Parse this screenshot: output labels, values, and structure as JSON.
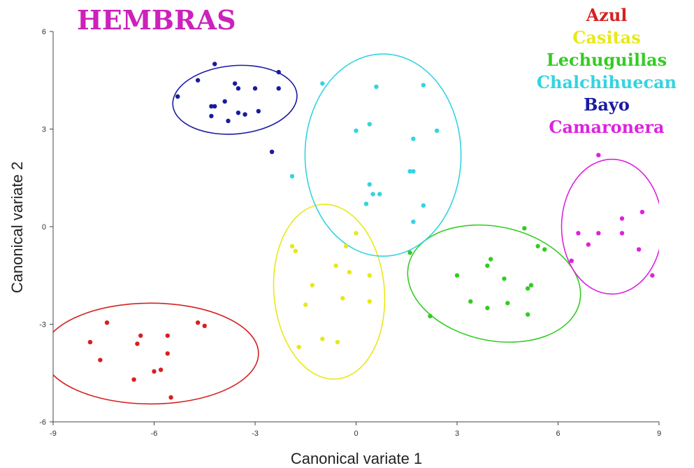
{
  "chart_data": {
    "type": "scatter",
    "title": "HEMBRAS",
    "xlabel": "Canonical variate 1",
    "ylabel": "Canonical variate 2",
    "xlim": [
      -9,
      9
    ],
    "ylim": [
      -6,
      6
    ],
    "xticks": [
      -9,
      -6,
      -3,
      0,
      3,
      6,
      9
    ],
    "yticks": [
      -6,
      -3,
      0,
      3,
      6
    ],
    "grid": false,
    "legend_position": "top-right",
    "colors": {
      "title": "#cc22bb"
    },
    "series": [
      {
        "name": "Azul",
        "color": "#d62020",
        "ellipse": {
          "cx": -6.1,
          "cy": -3.9,
          "rx": 3.2,
          "ry": 1.55,
          "angle": 0
        },
        "points": [
          [
            -7.4,
            -2.95
          ],
          [
            -7.9,
            -3.55
          ],
          [
            -7.6,
            -4.1
          ],
          [
            -6.5,
            -3.6
          ],
          [
            -6.4,
            -3.35
          ],
          [
            -6.0,
            -4.45
          ],
          [
            -6.6,
            -4.7
          ],
          [
            -5.8,
            -4.4
          ],
          [
            -5.6,
            -3.35
          ],
          [
            -5.6,
            -3.9
          ],
          [
            -4.7,
            -2.95
          ],
          [
            -4.5,
            -3.05
          ],
          [
            -5.5,
            -5.25
          ]
        ]
      },
      {
        "name": "Casitas",
        "color": "#e8e81a",
        "ellipse": {
          "cx": -0.8,
          "cy": -2.0,
          "rx": 2.6,
          "ry": 1.7,
          "angle": 95
        },
        "points": [
          [
            -1.9,
            -0.6
          ],
          [
            -1.8,
            -0.75
          ],
          [
            0.0,
            -0.2
          ],
          [
            -0.3,
            -0.6
          ],
          [
            -0.6,
            -1.2
          ],
          [
            -0.2,
            -1.4
          ],
          [
            0.4,
            -1.5
          ],
          [
            -1.3,
            -1.8
          ],
          [
            -1.5,
            -2.4
          ],
          [
            -0.4,
            -2.2
          ],
          [
            0.4,
            -2.3
          ],
          [
            -1.7,
            -3.7
          ],
          [
            -1.0,
            -3.45
          ],
          [
            -0.55,
            -3.55
          ]
        ]
      },
      {
        "name": "Lechuguillas",
        "color": "#33cc22",
        "ellipse": {
          "cx": 4.1,
          "cy": -1.75,
          "rx": 2.6,
          "ry": 1.75,
          "angle": -12
        },
        "points": [
          [
            1.6,
            -0.8
          ],
          [
            5.0,
            -0.05
          ],
          [
            5.4,
            -0.6
          ],
          [
            5.6,
            -0.7
          ],
          [
            4.0,
            -1.0
          ],
          [
            3.9,
            -1.2
          ],
          [
            3.0,
            -1.5
          ],
          [
            4.4,
            -1.6
          ],
          [
            5.1,
            -1.9
          ],
          [
            5.2,
            -1.8
          ],
          [
            3.4,
            -2.3
          ],
          [
            3.9,
            -2.5
          ],
          [
            4.5,
            -2.35
          ],
          [
            2.2,
            -2.75
          ],
          [
            5.1,
            -2.7
          ]
        ]
      },
      {
        "name": "Chalchihuecan",
        "color": "#33d4e0",
        "ellipse": {
          "cx": 0.8,
          "cy": 2.2,
          "rx": 3.0,
          "ry": 2.4,
          "angle": 90
        },
        "points": [
          [
            -1.0,
            4.4
          ],
          [
            0.6,
            4.3
          ],
          [
            2.0,
            4.35
          ],
          [
            0.4,
            3.15
          ],
          [
            0.0,
            2.95
          ],
          [
            2.4,
            2.95
          ],
          [
            1.7,
            2.7
          ],
          [
            1.6,
            1.7
          ],
          [
            1.7,
            1.7
          ],
          [
            -1.9,
            1.55
          ],
          [
            0.4,
            1.3
          ],
          [
            0.5,
            1.0
          ],
          [
            0.7,
            1.0
          ],
          [
            0.3,
            0.7
          ],
          [
            2.0,
            0.65
          ],
          [
            1.7,
            0.15
          ]
        ]
      },
      {
        "name": "Bayo",
        "color": "#1a1aa0",
        "ellipse": {
          "cx": -3.6,
          "cy": 3.9,
          "rx": 1.85,
          "ry": 1.05,
          "angle": 5
        },
        "points": [
          [
            -4.2,
            5.0
          ],
          [
            -4.7,
            4.5
          ],
          [
            -3.6,
            4.4
          ],
          [
            -3.5,
            4.25
          ],
          [
            -3.0,
            4.25
          ],
          [
            -2.3,
            4.25
          ],
          [
            -2.3,
            4.75
          ],
          [
            -5.3,
            4.0
          ],
          [
            -4.3,
            3.7
          ],
          [
            -4.2,
            3.7
          ],
          [
            -3.9,
            3.85
          ],
          [
            -4.3,
            3.4
          ],
          [
            -3.5,
            3.5
          ],
          [
            -3.3,
            3.45
          ],
          [
            -2.9,
            3.55
          ],
          [
            -3.8,
            3.25
          ],
          [
            -2.5,
            2.3
          ]
        ]
      },
      {
        "name": "Camaronera",
        "color": "#dd22dd",
        "ellipse": {
          "cx": 7.6,
          "cy": 0.0,
          "rx": 2.0,
          "ry": 1.55,
          "angle": 90
        },
        "points": [
          [
            7.2,
            2.2
          ],
          [
            8.5,
            0.45
          ],
          [
            7.9,
            0.25
          ],
          [
            7.9,
            -0.2
          ],
          [
            7.2,
            -0.2
          ],
          [
            6.6,
            -0.2
          ],
          [
            6.9,
            -0.55
          ],
          [
            8.4,
            -0.7
          ],
          [
            6.4,
            -1.05
          ],
          [
            8.8,
            -1.5
          ]
        ]
      }
    ]
  }
}
